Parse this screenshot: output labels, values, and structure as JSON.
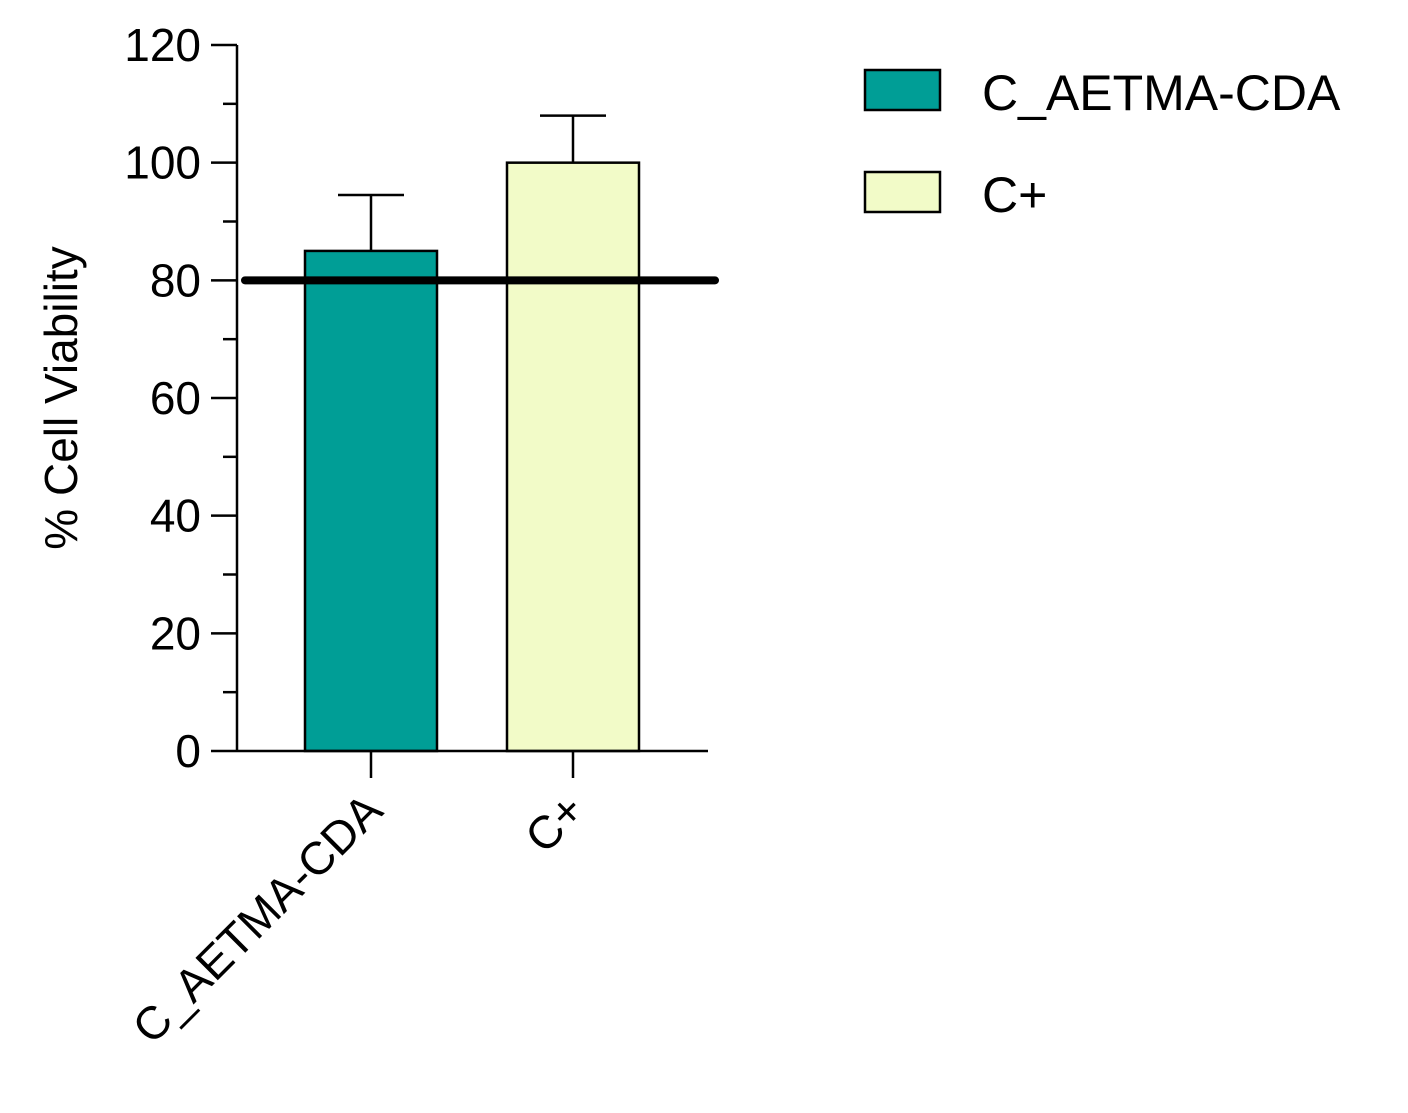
{
  "chart_data": {
    "type": "bar",
    "title": "",
    "xlabel": "",
    "ylabel": "% Cell Viability",
    "categories": [
      "C_AETMA-CDA",
      "C+"
    ],
    "values": [
      85,
      100
    ],
    "error_upper": [
      94.5,
      108
    ],
    "colors": [
      "#009e96",
      "#f2fbc8"
    ],
    "reference_line": 80,
    "ylim": [
      0,
      120
    ],
    "y_ticks": [
      "0",
      "20",
      "40",
      "60",
      "80",
      "100",
      "120"
    ],
    "y_minor_step": 10,
    "grid": false,
    "legend": {
      "position": "top-right",
      "entries": [
        "C_AETMA-CDA",
        "C+"
      ]
    }
  }
}
